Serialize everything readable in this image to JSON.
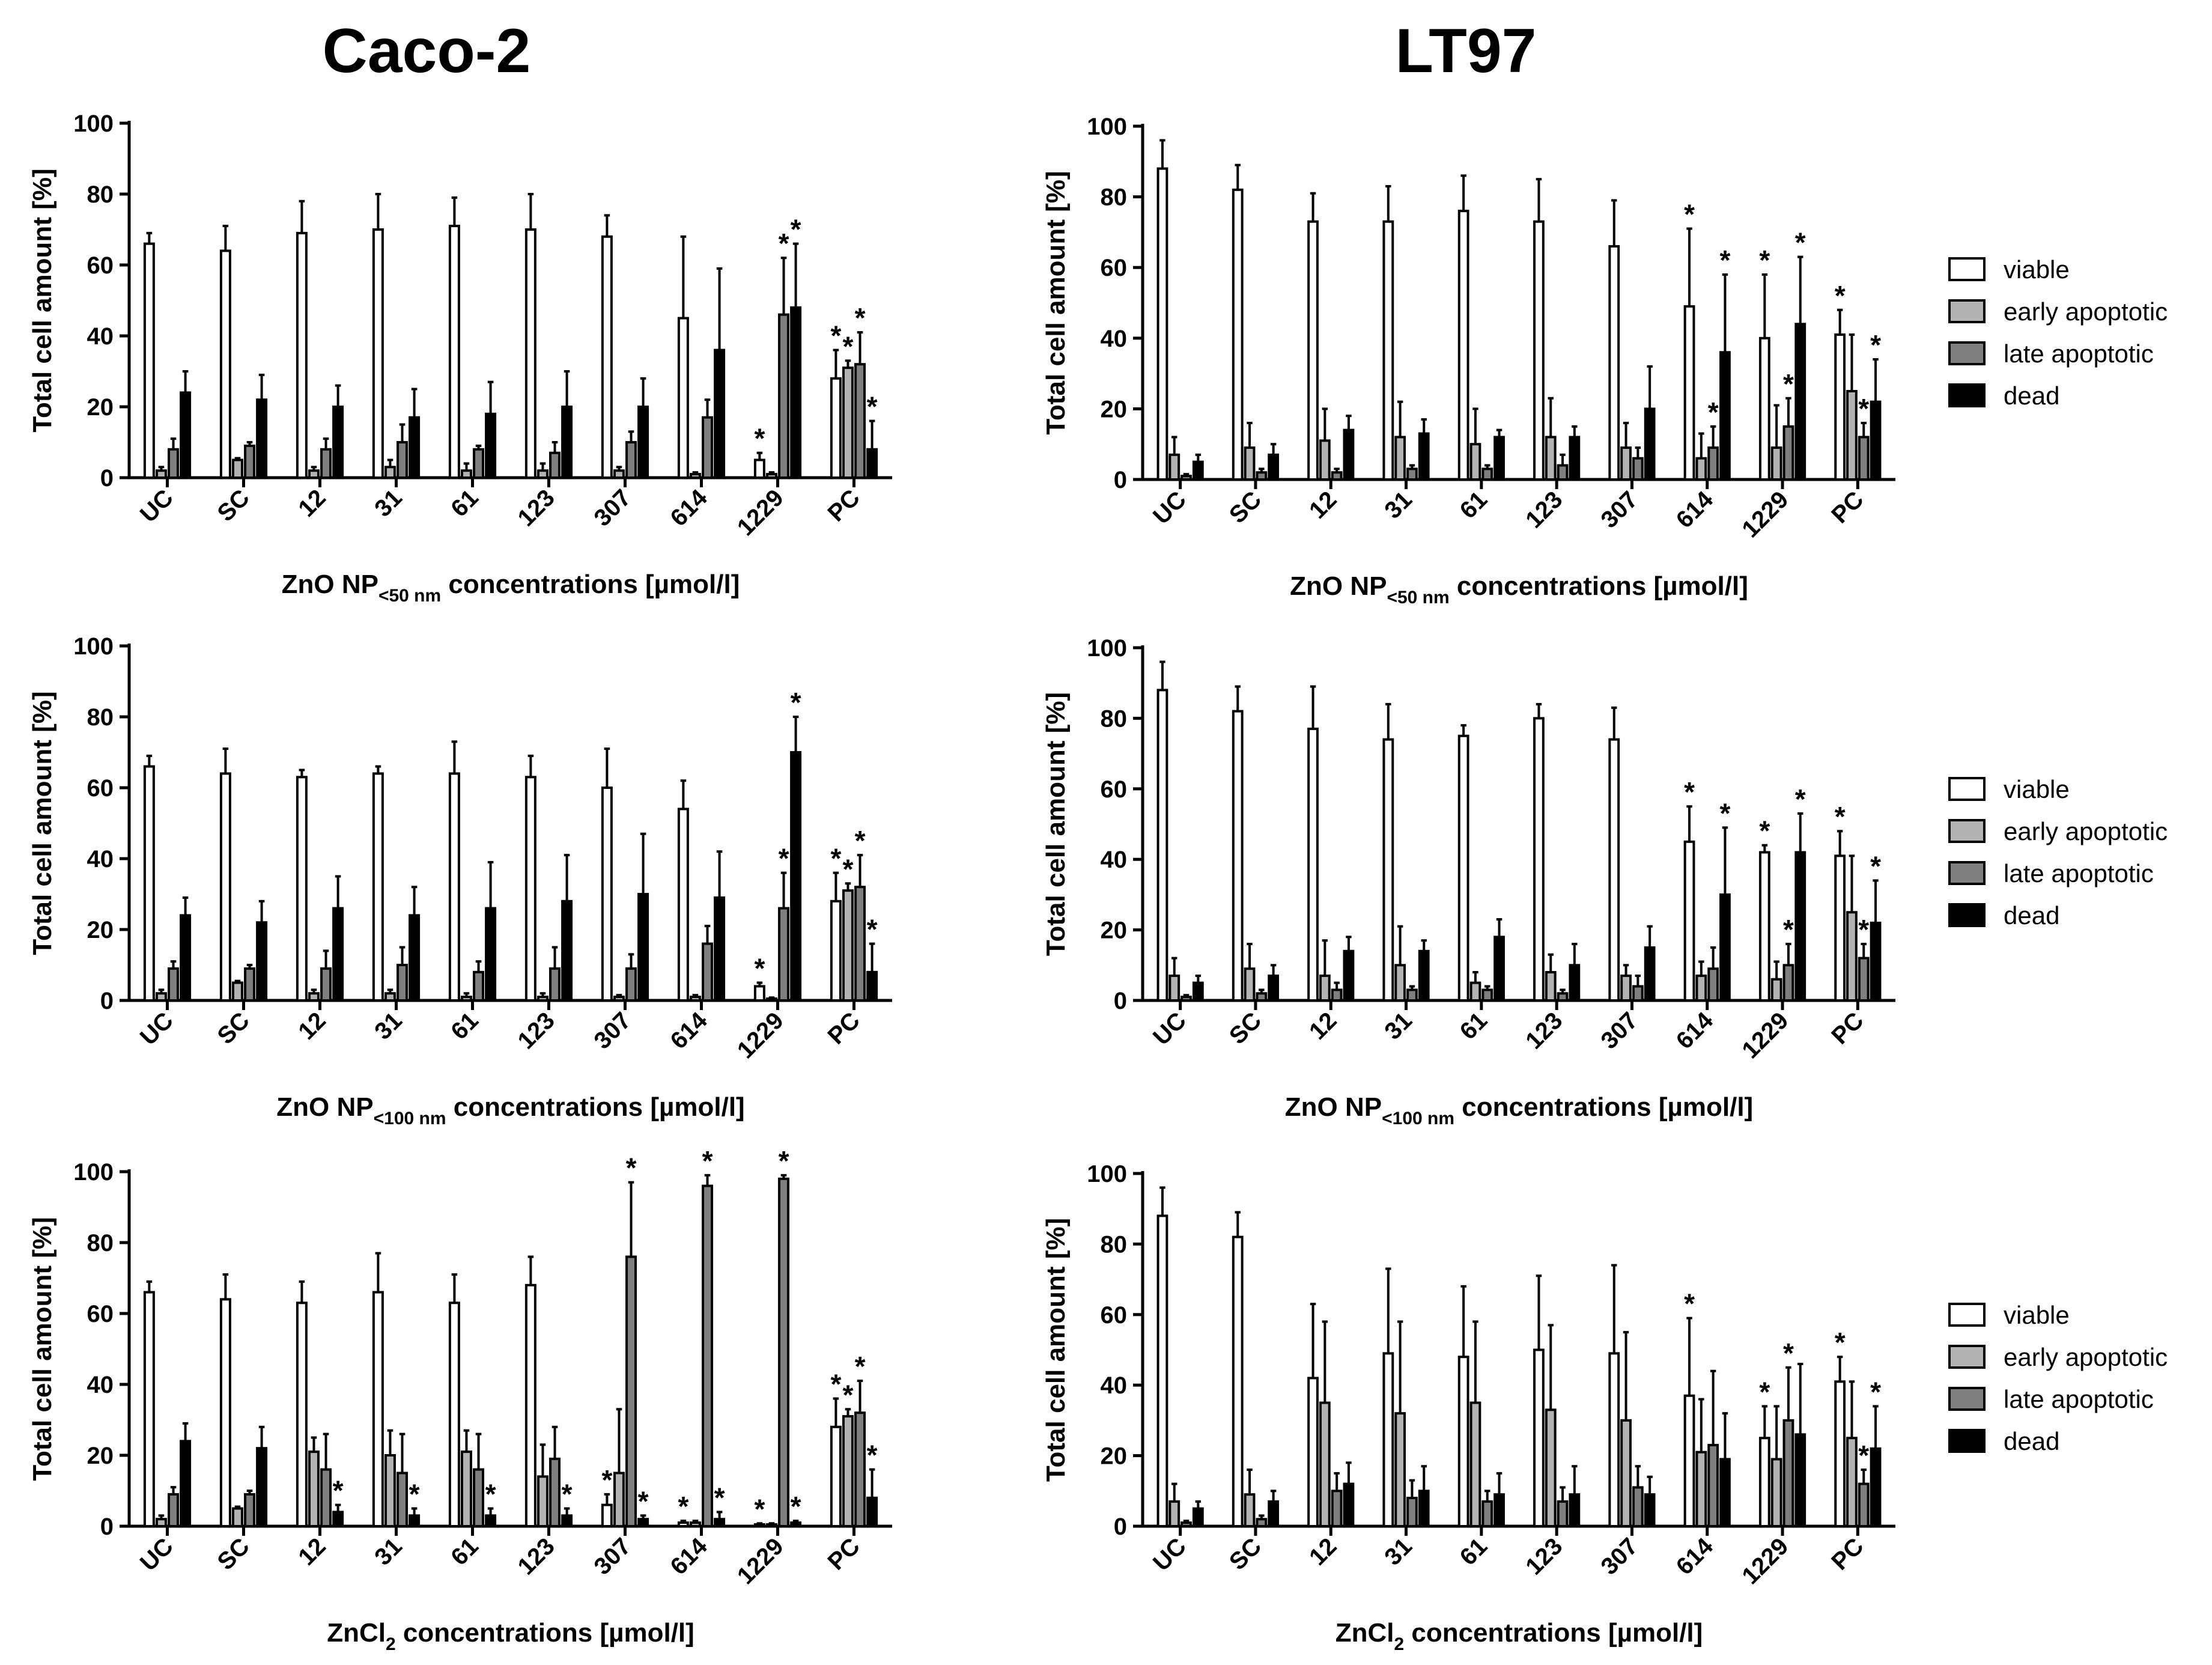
{
  "figure": {
    "column_titles": [
      "Caco-2",
      "LT97"
    ],
    "legend": [
      {
        "label": "viable",
        "color": "#ffffff"
      },
      {
        "label": "early apoptotic",
        "color": "#b3b3b3"
      },
      {
        "label": "late apoptotic",
        "color": "#7f7f7f"
      },
      {
        "label": "dead",
        "color": "#000000"
      }
    ]
  },
  "chart_data": [
    {
      "type": "bar",
      "cell_line": "Caco-2",
      "title": "",
      "ylabel": "Total cell amount [%]",
      "xlabel": "ZnO NP<50 nm concentrations [µmol/l]",
      "xlabel_parts": [
        "ZnO NP",
        "<50 nm",
        " concentrations [µmol/l]"
      ],
      "ylim": [
        0,
        100
      ],
      "yticks": [
        0,
        20,
        40,
        60,
        80,
        100
      ],
      "categories": [
        "UC",
        "SC",
        "12",
        "31",
        "61",
        "123",
        "307",
        "614",
        "1229",
        "PC"
      ],
      "series": [
        {
          "name": "viable",
          "values": [
            66,
            64,
            69,
            70,
            71,
            70,
            68,
            45,
            5,
            28
          ],
          "errors": [
            3,
            7,
            9,
            10,
            8,
            10,
            6,
            23,
            2,
            8
          ],
          "sig": [
            false,
            false,
            false,
            false,
            false,
            false,
            false,
            false,
            true,
            true
          ]
        },
        {
          "name": "early apoptotic",
          "values": [
            2,
            5,
            2,
            3,
            2,
            2,
            2,
            1,
            1,
            31
          ],
          "errors": [
            1,
            0.5,
            1,
            2,
            2,
            2,
            1,
            0.5,
            0.5,
            2
          ],
          "sig": [
            false,
            false,
            false,
            false,
            false,
            false,
            false,
            false,
            false,
            true
          ]
        },
        {
          "name": "late apoptotic",
          "values": [
            8,
            9,
            8,
            10,
            8,
            7,
            10,
            17,
            46,
            32
          ],
          "errors": [
            3,
            1,
            3,
            5,
            1,
            3,
            3,
            5,
            16,
            9
          ],
          "sig": [
            false,
            false,
            false,
            false,
            false,
            false,
            false,
            false,
            true,
            true
          ]
        },
        {
          "name": "dead",
          "values": [
            24,
            22,
            20,
            17,
            18,
            20,
            20,
            36,
            48,
            8
          ],
          "errors": [
            6,
            7,
            6,
            8,
            9,
            10,
            8,
            23,
            18,
            8
          ],
          "sig": [
            false,
            false,
            false,
            false,
            false,
            false,
            false,
            false,
            true,
            true
          ]
        }
      ]
    },
    {
      "type": "bar",
      "cell_line": "LT97",
      "title": "",
      "ylabel": "Total cell amount [%]",
      "xlabel": "ZnO NP<50 nm concentrations [µmol/l]",
      "xlabel_parts": [
        "ZnO NP",
        "<50 nm",
        " concentrations [µmol/l]"
      ],
      "ylim": [
        0,
        100
      ],
      "yticks": [
        0,
        20,
        40,
        60,
        80,
        100
      ],
      "categories": [
        "UC",
        "SC",
        "12",
        "31",
        "61",
        "123",
        "307",
        "614",
        "1229",
        "PC"
      ],
      "series": [
        {
          "name": "viable",
          "values": [
            88,
            82,
            73,
            73,
            76,
            73,
            66,
            49,
            40,
            41
          ],
          "errors": [
            8,
            7,
            8,
            10,
            10,
            12,
            13,
            22,
            18,
            7
          ],
          "sig": [
            false,
            false,
            false,
            false,
            false,
            false,
            false,
            true,
            true,
            true
          ]
        },
        {
          "name": "early apoptotic",
          "values": [
            7,
            9,
            11,
            12,
            10,
            12,
            9,
            6,
            9,
            25
          ],
          "errors": [
            5,
            7,
            9,
            10,
            10,
            11,
            7,
            7,
            12,
            16
          ],
          "sig": [
            false,
            false,
            false,
            false,
            false,
            false,
            false,
            false,
            false,
            false
          ]
        },
        {
          "name": "late apoptotic",
          "values": [
            1,
            2,
            2,
            3,
            3,
            4,
            6,
            9,
            15,
            12
          ],
          "errors": [
            0.5,
            1,
            1,
            1,
            1,
            3,
            3,
            6,
            8,
            4
          ],
          "sig": [
            false,
            false,
            false,
            false,
            false,
            false,
            false,
            true,
            true,
            true
          ]
        },
        {
          "name": "dead",
          "values": [
            5,
            7,
            14,
            13,
            12,
            12,
            20,
            36,
            44,
            22
          ],
          "errors": [
            2,
            3,
            4,
            4,
            2,
            3,
            12,
            22,
            19,
            12
          ],
          "sig": [
            false,
            false,
            false,
            false,
            false,
            false,
            false,
            true,
            true,
            true
          ]
        }
      ]
    },
    {
      "type": "bar",
      "cell_line": "Caco-2",
      "title": "",
      "ylabel": "Total cell amount [%]",
      "xlabel": "ZnO NP<100 nm concentrations [µmol/l]",
      "xlabel_parts": [
        "ZnO NP",
        "<100 nm",
        " concentrations [µmol/l]"
      ],
      "ylim": [
        0,
        100
      ],
      "yticks": [
        0,
        20,
        40,
        60,
        80,
        100
      ],
      "categories": [
        "UC",
        "SC",
        "12",
        "31",
        "61",
        "123",
        "307",
        "614",
        "1229",
        "PC"
      ],
      "series": [
        {
          "name": "viable",
          "values": [
            66,
            64,
            63,
            64,
            64,
            63,
            60,
            54,
            4,
            28
          ],
          "errors": [
            3,
            7,
            2,
            2,
            9,
            6,
            11,
            8,
            1,
            8
          ],
          "sig": [
            false,
            false,
            false,
            false,
            false,
            false,
            false,
            false,
            true,
            true
          ]
        },
        {
          "name": "early apoptotic",
          "values": [
            2,
            5,
            2,
            2,
            1,
            1,
            1,
            1,
            0.5,
            31
          ],
          "errors": [
            1,
            0.5,
            1,
            1,
            1,
            1,
            0.5,
            0.5,
            0.3,
            2
          ],
          "sig": [
            false,
            false,
            false,
            false,
            false,
            false,
            false,
            false,
            false,
            true
          ]
        },
        {
          "name": "late apoptotic",
          "values": [
            9,
            9,
            9,
            10,
            8,
            9,
            9,
            16,
            26,
            32
          ],
          "errors": [
            2,
            1,
            5,
            5,
            3,
            6,
            4,
            5,
            10,
            9
          ],
          "sig": [
            false,
            false,
            false,
            false,
            false,
            false,
            false,
            false,
            true,
            true
          ]
        },
        {
          "name": "dead",
          "values": [
            24,
            22,
            26,
            24,
            26,
            28,
            30,
            29,
            70,
            8
          ],
          "errors": [
            5,
            6,
            9,
            8,
            13,
            13,
            17,
            13,
            10,
            8
          ],
          "sig": [
            false,
            false,
            false,
            false,
            false,
            false,
            false,
            false,
            true,
            true
          ]
        }
      ]
    },
    {
      "type": "bar",
      "cell_line": "LT97",
      "title": "",
      "ylabel": "Total cell amount [%]",
      "xlabel": "ZnO NP<100 nm concentrations [µmol/l]",
      "xlabel_parts": [
        "ZnO NP",
        "<100 nm",
        " concentrations [µmol/l]"
      ],
      "ylim": [
        0,
        100
      ],
      "yticks": [
        0,
        20,
        40,
        60,
        80,
        100
      ],
      "categories": [
        "UC",
        "SC",
        "12",
        "31",
        "61",
        "123",
        "307",
        "614",
        "1229",
        "PC"
      ],
      "series": [
        {
          "name": "viable",
          "values": [
            88,
            82,
            77,
            74,
            75,
            80,
            74,
            45,
            42,
            41
          ],
          "errors": [
            8,
            7,
            12,
            10,
            3,
            4,
            9,
            10,
            2,
            7
          ],
          "sig": [
            false,
            false,
            false,
            false,
            false,
            false,
            false,
            true,
            true,
            true
          ]
        },
        {
          "name": "early apoptotic",
          "values": [
            7,
            9,
            7,
            10,
            5,
            8,
            7,
            7,
            6,
            25
          ],
          "errors": [
            5,
            7,
            10,
            11,
            3,
            5,
            3,
            4,
            5,
            16
          ],
          "sig": [
            false,
            false,
            false,
            false,
            false,
            false,
            false,
            false,
            false,
            false
          ]
        },
        {
          "name": "late apoptotic",
          "values": [
            1,
            2,
            3,
            3,
            3,
            2,
            4,
            9,
            10,
            12
          ],
          "errors": [
            0.5,
            1,
            2,
            1,
            1,
            1,
            3,
            6,
            6,
            4
          ],
          "sig": [
            false,
            false,
            false,
            false,
            false,
            false,
            false,
            false,
            true,
            true
          ]
        },
        {
          "name": "dead",
          "values": [
            5,
            7,
            14,
            14,
            18,
            10,
            15,
            30,
            42,
            22
          ],
          "errors": [
            2,
            3,
            4,
            3,
            5,
            6,
            6,
            19,
            11,
            12
          ],
          "sig": [
            false,
            false,
            false,
            false,
            false,
            false,
            false,
            true,
            true,
            true
          ]
        }
      ]
    },
    {
      "type": "bar",
      "cell_line": "Caco-2",
      "title": "",
      "ylabel": "Total cell amount [%]",
      "xlabel": "ZnCl2 concentrations [µmol/l]",
      "xlabel_parts": [
        "ZnCl",
        "2",
        " concentrations [µmol/l]"
      ],
      "ylim": [
        0,
        100
      ],
      "yticks": [
        0,
        20,
        40,
        60,
        80,
        100
      ],
      "categories": [
        "UC",
        "SC",
        "12",
        "31",
        "61",
        "123",
        "307",
        "614",
        "1229",
        "PC"
      ],
      "series": [
        {
          "name": "viable",
          "values": [
            66,
            64,
            63,
            66,
            63,
            68,
            6,
            1,
            0.5,
            28
          ],
          "errors": [
            3,
            7,
            6,
            11,
            8,
            8,
            3,
            0.5,
            0.3,
            8
          ],
          "sig": [
            false,
            false,
            false,
            false,
            false,
            false,
            true,
            true,
            true,
            true
          ]
        },
        {
          "name": "early apoptotic",
          "values": [
            2,
            5,
            21,
            20,
            21,
            14,
            15,
            1,
            0.5,
            31
          ],
          "errors": [
            1,
            0.5,
            4,
            7,
            6,
            9,
            18,
            0.5,
            0.3,
            2
          ],
          "sig": [
            false,
            false,
            false,
            false,
            false,
            false,
            false,
            false,
            false,
            true
          ]
        },
        {
          "name": "late apoptotic",
          "values": [
            9,
            9,
            16,
            15,
            16,
            19,
            76,
            96,
            98,
            32
          ],
          "errors": [
            2,
            1,
            10,
            11,
            10,
            9,
            21,
            3,
            1,
            9
          ],
          "sig": [
            false,
            false,
            false,
            false,
            false,
            false,
            true,
            true,
            true,
            true
          ]
        },
        {
          "name": "dead",
          "values": [
            24,
            22,
            4,
            3,
            3,
            3,
            2,
            2,
            1,
            8
          ],
          "errors": [
            5,
            6,
            2,
            2,
            2,
            2,
            1,
            2,
            0.5,
            8
          ],
          "sig": [
            false,
            false,
            true,
            true,
            true,
            true,
            true,
            true,
            true,
            true
          ]
        }
      ]
    },
    {
      "type": "bar",
      "cell_line": "LT97",
      "title": "",
      "ylabel": "Total cell amount [%]",
      "xlabel": "ZnCl2 concentrations [µmol/l]",
      "xlabel_parts": [
        "ZnCl",
        "2",
        " concentrations [µmol/l]"
      ],
      "ylim": [
        0,
        100
      ],
      "yticks": [
        0,
        20,
        40,
        60,
        80,
        100
      ],
      "categories": [
        "UC",
        "SC",
        "12",
        "31",
        "61",
        "123",
        "307",
        "614",
        "1229",
        "PC"
      ],
      "series": [
        {
          "name": "viable",
          "values": [
            88,
            82,
            42,
            49,
            48,
            50,
            49,
            37,
            25,
            41
          ],
          "errors": [
            8,
            7,
            21,
            24,
            20,
            21,
            25,
            22,
            9,
            7
          ],
          "sig": [
            false,
            false,
            false,
            false,
            false,
            false,
            false,
            true,
            true,
            true
          ]
        },
        {
          "name": "early apoptotic",
          "values": [
            7,
            9,
            35,
            32,
            35,
            33,
            30,
            21,
            19,
            25
          ],
          "errors": [
            5,
            7,
            23,
            26,
            23,
            24,
            25,
            15,
            15,
            16
          ],
          "sig": [
            false,
            false,
            false,
            false,
            false,
            false,
            false,
            false,
            false,
            false
          ]
        },
        {
          "name": "late apoptotic",
          "values": [
            1,
            2,
            10,
            8,
            7,
            7,
            11,
            23,
            30,
            12
          ],
          "errors": [
            0.5,
            1,
            5,
            5,
            3,
            4,
            6,
            21,
            15,
            4
          ],
          "sig": [
            false,
            false,
            false,
            false,
            false,
            false,
            false,
            false,
            true,
            true
          ]
        },
        {
          "name": "dead",
          "values": [
            5,
            7,
            12,
            10,
            9,
            9,
            9,
            19,
            26,
            22
          ],
          "errors": [
            2,
            3,
            6,
            7,
            6,
            8,
            5,
            13,
            20,
            12
          ],
          "sig": [
            false,
            false,
            false,
            false,
            false,
            false,
            false,
            false,
            false,
            true
          ]
        }
      ]
    }
  ]
}
